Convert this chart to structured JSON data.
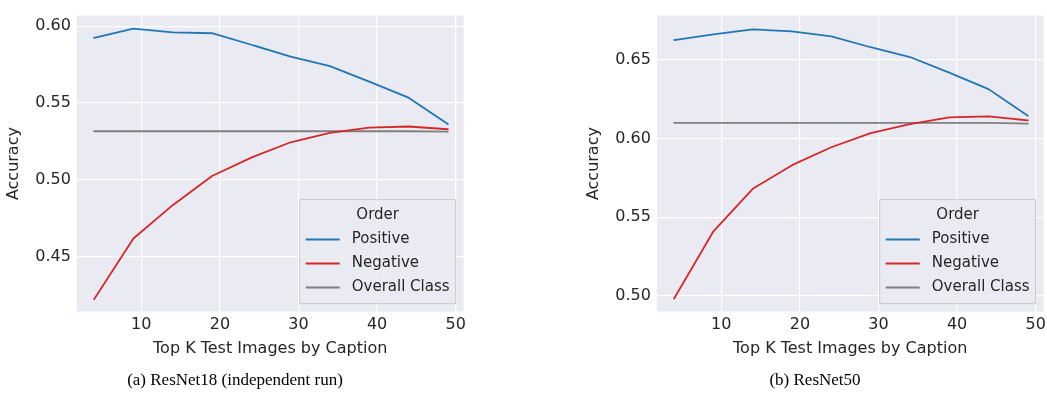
{
  "chart_data": [
    {
      "type": "line",
      "xlabel": "Top K Test Images by Caption",
      "ylabel": "Accuracy",
      "legend_title": "Order",
      "legend": "bottom right",
      "grid": true,
      "x": [
        4,
        9,
        14,
        19,
        24,
        29,
        34,
        39,
        44,
        49
      ],
      "xlim": [
        1.8,
        51
      ],
      "xticks": [
        10,
        20,
        30,
        40,
        50
      ],
      "ylim": [
        0.414,
        0.607
      ],
      "yticks": [
        {
          "value": 0.45,
          "label": "0.45"
        },
        {
          "value": 0.5,
          "label": "0.50"
        },
        {
          "value": 0.55,
          "label": "0.55"
        },
        {
          "value": 0.6,
          "label": "0.60"
        }
      ],
      "series": [
        {
          "name": "Positive",
          "color": "#1f77b4",
          "values": [
            0.5925,
            0.5985,
            0.596,
            0.5955,
            0.588,
            0.5803,
            0.5741,
            0.564,
            0.5535,
            0.5363
          ]
        },
        {
          "name": "Negative",
          "color": "#d62728",
          "values": [
            0.4221,
            0.4617,
            0.4834,
            0.5024,
            0.5144,
            0.5244,
            0.5306,
            0.5339,
            0.5347,
            0.5329
          ]
        },
        {
          "name": "Overall Class",
          "color": "#7f7f7f",
          "values": [
            0.5316,
            0.5316,
            0.5316,
            0.5316,
            0.5316,
            0.5316,
            0.5316,
            0.5316,
            0.5316,
            0.5314
          ]
        }
      ],
      "annotations": [
        "(a) ResNet18 (independent run)"
      ]
    },
    {
      "type": "line",
      "xlabel": "Top K Test Images by Caption",
      "ylabel": "Accuracy",
      "legend_title": "Order",
      "legend": "bottom right",
      "grid": true,
      "x": [
        4,
        9,
        14,
        19,
        24,
        29,
        34,
        39,
        44,
        49
      ],
      "xlim": [
        1.8,
        51
      ],
      "xticks": [
        10,
        20,
        30,
        40,
        50
      ],
      "ylim": [
        0.49,
        0.678
      ],
      "yticks": [
        {
          "value": 0.5,
          "label": "0.50"
        },
        {
          "value": 0.55,
          "label": "0.55"
        },
        {
          "value": 0.6,
          "label": "0.60"
        },
        {
          "value": 0.65,
          "label": "0.65"
        }
      ],
      "series": [
        {
          "name": "Positive",
          "color": "#1f77b4",
          "values": [
            0.6624,
            0.6661,
            0.6693,
            0.668,
            0.6648,
            0.6579,
            0.6517,
            0.6418,
            0.6313,
            0.6144
          ]
        },
        {
          "name": "Negative",
          "color": "#d62728",
          "values": [
            0.4983,
            0.541,
            0.568,
            0.583,
            0.5944,
            0.6034,
            0.609,
            0.6133,
            0.614,
            0.6114
          ]
        },
        {
          "name": "Overall Class",
          "color": "#7f7f7f",
          "values": [
            0.6099,
            0.6099,
            0.6099,
            0.6099,
            0.6099,
            0.6099,
            0.6099,
            0.6099,
            0.6099,
            0.6094
          ]
        }
      ],
      "annotations": [
        "(b) ResNet50"
      ]
    }
  ]
}
